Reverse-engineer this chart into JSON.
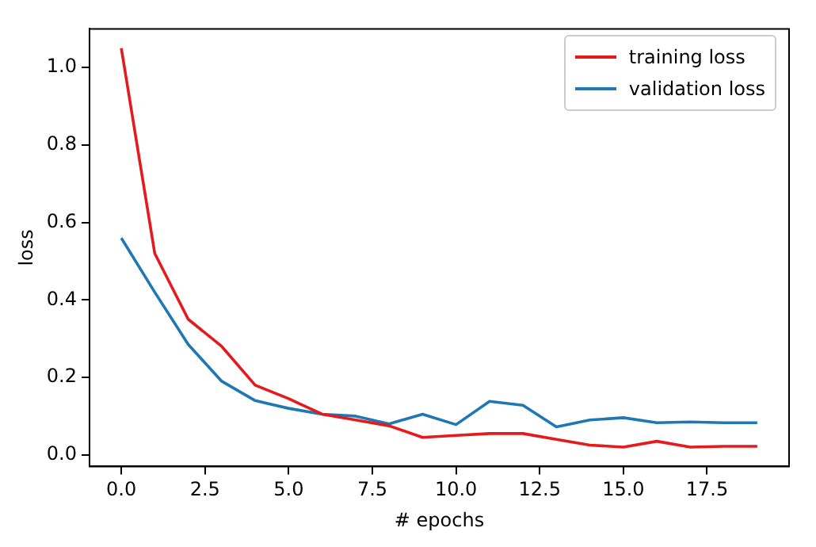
{
  "chart_data": {
    "type": "line",
    "xlabel": "# epochs",
    "ylabel": "loss",
    "x": [
      0,
      1,
      2,
      3,
      4,
      5,
      6,
      7,
      8,
      9,
      10,
      11,
      12,
      13,
      14,
      15,
      16,
      17,
      18,
      19
    ],
    "series": [
      {
        "name": "training loss",
        "color": "#e41a1c",
        "values": [
          1.05,
          0.52,
          0.35,
          0.28,
          0.18,
          0.145,
          0.105,
          0.09,
          0.075,
          0.045,
          0.05,
          0.055,
          0.055,
          0.04,
          0.025,
          0.02,
          0.035,
          0.02,
          0.022,
          0.022
        ]
      },
      {
        "name": "validation loss",
        "color": "#1f77b4",
        "values": [
          0.56,
          0.42,
          0.285,
          0.19,
          0.14,
          0.12,
          0.105,
          0.1,
          0.08,
          0.105,
          0.078,
          0.138,
          0.128,
          0.072,
          0.09,
          0.096,
          0.083,
          0.085,
          0.083,
          0.083
        ]
      }
    ],
    "xlim": [
      -0.95,
      19.95
    ],
    "ylim": [
      -0.03,
      1.1
    ],
    "xticks": [
      {
        "value": 0,
        "label": "0.0"
      },
      {
        "value": 2.5,
        "label": "2.5"
      },
      {
        "value": 5,
        "label": "5.0"
      },
      {
        "value": 7.5,
        "label": "7.5"
      },
      {
        "value": 10,
        "label": "10.0"
      },
      {
        "value": 12.5,
        "label": "12.5"
      },
      {
        "value": 15,
        "label": "15.0"
      },
      {
        "value": 17.5,
        "label": "17.5"
      }
    ],
    "yticks": [
      {
        "value": 0,
        "label": "0.0"
      },
      {
        "value": 0.2,
        "label": "0.2"
      },
      {
        "value": 0.4,
        "label": "0.4"
      },
      {
        "value": 0.6,
        "label": "0.6"
      },
      {
        "value": 0.8,
        "label": "0.8"
      },
      {
        "value": 1,
        "label": "1.0"
      }
    ],
    "legend": "top right",
    "grid": false,
    "marker": "none",
    "line_style": "solid"
  }
}
